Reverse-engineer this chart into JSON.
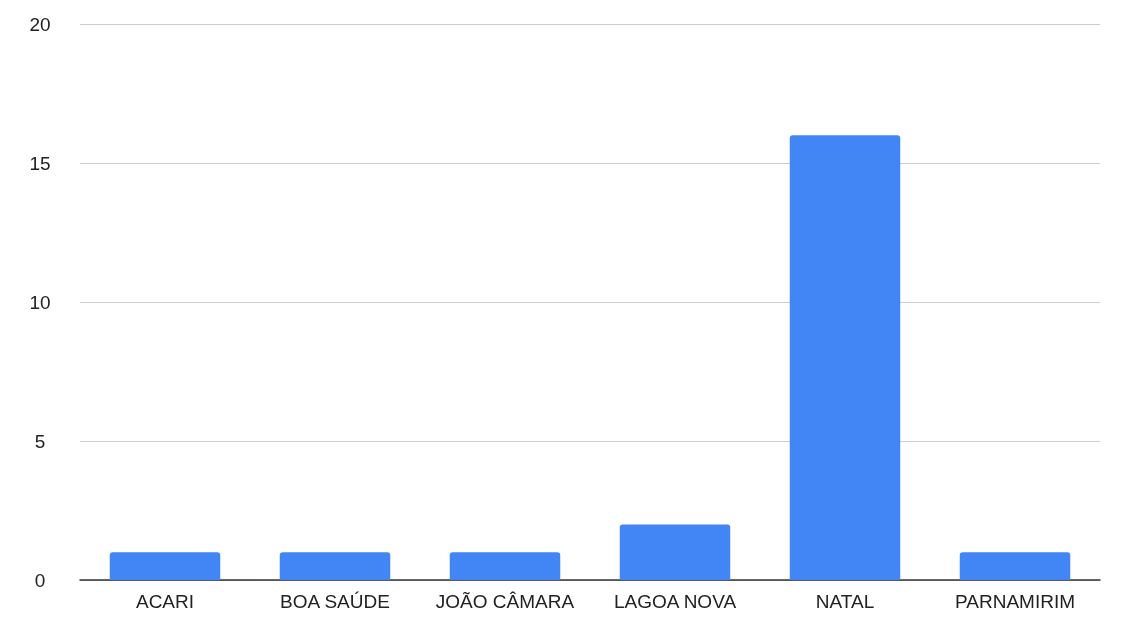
{
  "chart_data": {
    "type": "bar",
    "categories": [
      "ACARI",
      "BOA SAÚDE",
      "JOÃO CÂMARA",
      "LAGOA NOVA",
      "NATAL",
      "PARNAMIRIM"
    ],
    "values": [
      1,
      1,
      1,
      2,
      16,
      1
    ],
    "color": "#4285f4",
    "ylim": [
      0,
      20
    ],
    "yticks": [
      0,
      5,
      10,
      15,
      20
    ],
    "grid": "y"
  }
}
